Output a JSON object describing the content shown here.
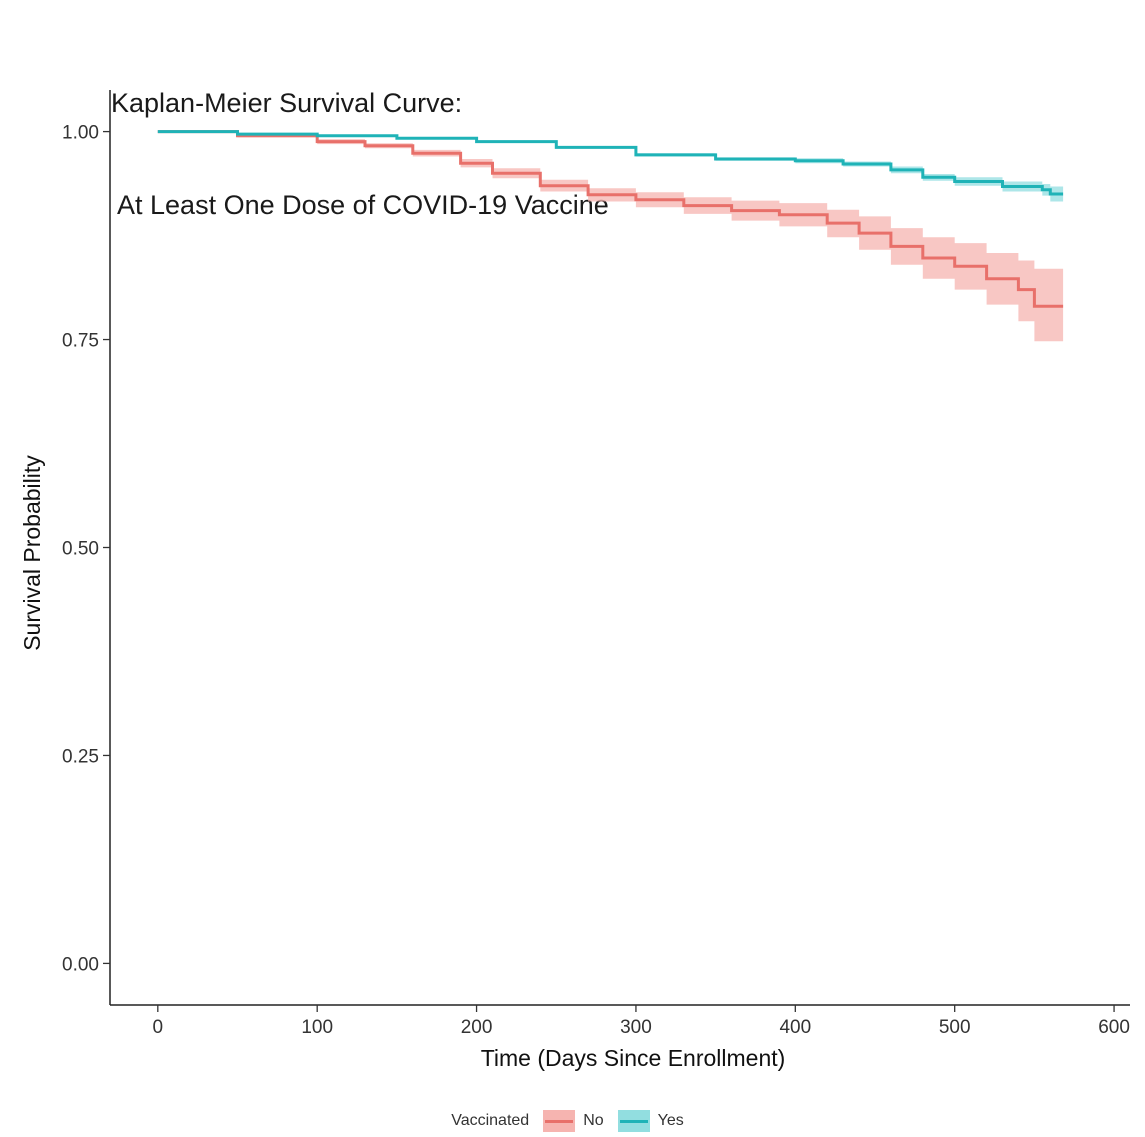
{
  "chart_data": {
    "type": "line",
    "title_line1": "Kaplan-Meier Survival Curve:",
    "title_line2": " At Least One Dose of COVID-19 Vaccine",
    "xlabel": "Time (Days Since Enrollment)",
    "ylabel": "Survival Probability",
    "xlim": [
      -30,
      610
    ],
    "ylim": [
      -0.05,
      1.05
    ],
    "xticks": [
      0,
      100,
      200,
      300,
      400,
      500,
      600
    ],
    "yticks": [
      0.0,
      0.25,
      0.5,
      0.75,
      1.0
    ],
    "ytick_labels": [
      "0.00",
      "0.25",
      "0.50",
      "0.75",
      "1.00"
    ],
    "grid": false,
    "legend": {
      "title": "Vaccinated",
      "placement": "bottom"
    },
    "series": [
      {
        "name": "No",
        "color": "#e8706a",
        "band_color": "#f6b4b0",
        "x": [
          0,
          50,
          100,
          130,
          160,
          190,
          210,
          240,
          270,
          300,
          330,
          360,
          390,
          420,
          440,
          460,
          480,
          500,
          520,
          540,
          550,
          568
        ],
        "y": [
          1.0,
          0.995,
          0.988,
          0.983,
          0.974,
          0.962,
          0.95,
          0.935,
          0.924,
          0.918,
          0.911,
          0.905,
          0.9,
          0.89,
          0.878,
          0.862,
          0.848,
          0.838,
          0.823,
          0.81,
          0.79,
          0.79
        ],
        "lower": [
          1.0,
          0.993,
          0.985,
          0.98,
          0.97,
          0.957,
          0.944,
          0.928,
          0.916,
          0.909,
          0.901,
          0.893,
          0.886,
          0.873,
          0.858,
          0.84,
          0.823,
          0.81,
          0.792,
          0.772,
          0.748,
          0.748
        ],
        "upper": [
          1.0,
          0.997,
          0.991,
          0.986,
          0.978,
          0.967,
          0.956,
          0.942,
          0.932,
          0.927,
          0.921,
          0.917,
          0.914,
          0.906,
          0.898,
          0.884,
          0.873,
          0.866,
          0.854,
          0.845,
          0.835,
          0.835
        ]
      },
      {
        "name": "Yes",
        "color": "#1fb3b7",
        "band_color": "#92dee0",
        "x": [
          0,
          50,
          100,
          150,
          200,
          250,
          300,
          350,
          400,
          430,
          460,
          480,
          500,
          530,
          555,
          560,
          568
        ],
        "y": [
          1.0,
          0.997,
          0.995,
          0.992,
          0.988,
          0.981,
          0.972,
          0.967,
          0.965,
          0.961,
          0.954,
          0.945,
          0.94,
          0.934,
          0.93,
          0.925,
          0.925
        ],
        "lower": [
          1.0,
          0.996,
          0.994,
          0.991,
          0.987,
          0.98,
          0.97,
          0.965,
          0.962,
          0.958,
          0.95,
          0.941,
          0.935,
          0.928,
          0.923,
          0.916,
          0.916
        ],
        "upper": [
          1.0,
          0.998,
          0.996,
          0.993,
          0.989,
          0.982,
          0.974,
          0.969,
          0.968,
          0.964,
          0.958,
          0.949,
          0.945,
          0.94,
          0.937,
          0.934,
          0.934
        ]
      }
    ]
  }
}
